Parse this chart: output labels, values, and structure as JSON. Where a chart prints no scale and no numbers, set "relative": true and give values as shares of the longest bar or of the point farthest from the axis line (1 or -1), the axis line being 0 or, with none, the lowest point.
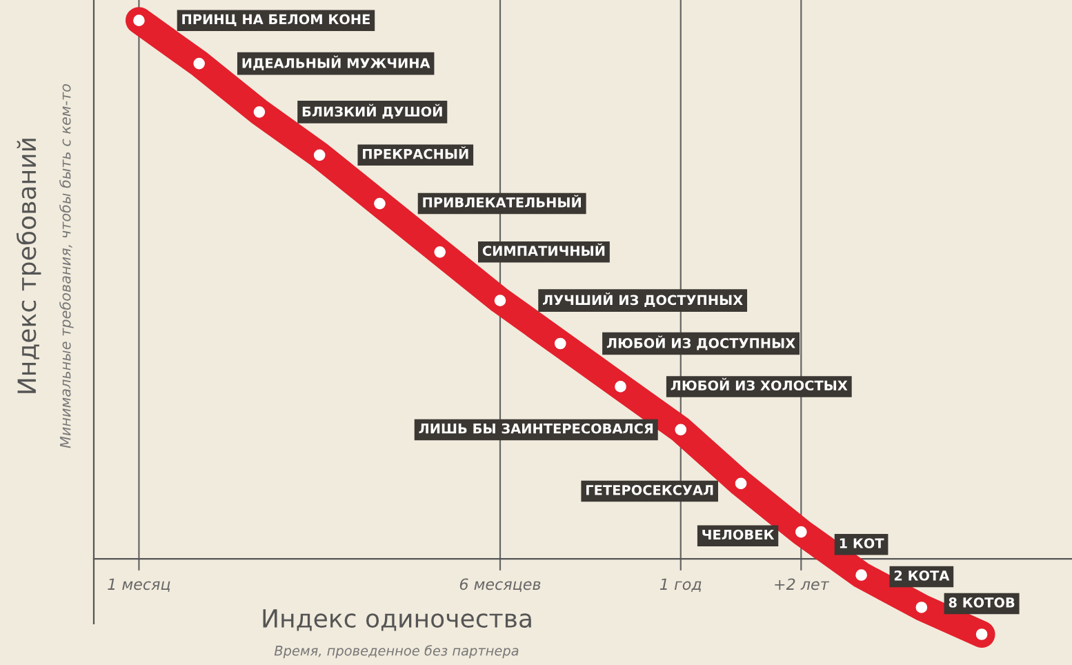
{
  "chart_data": {
    "type": "line",
    "relative": true,
    "marker": "circle",
    "line_style": "solid",
    "grid": "x",
    "xlabel": "Индекс одиночества",
    "ylabel": "Индекс требований",
    "annotations": [
      "Время, проведенное без партнера",
      "Минимальные требования, чтобы быть с кем-то",
      "ПРИНЦ НА БЕЛОМ КОНЕ",
      "ИДЕАЛЬНЫЙ МУЖЧИНА",
      "БЛИЗКИЙ ДУШОЙ",
      "ПРЕКРАСНЫЙ",
      "ПРИВЛЕКАТЕЛЬНЫЙ",
      "СИМПАТИЧНЫЙ",
      "ЛУЧШИЙ ИЗ ДОСТУПНЫХ",
      "ЛЮБОЙ ИЗ ДОСТУПНЫХ",
      "ЛЮБОЙ ИЗ ХОЛОСТЫХ",
      "ЛИШЬ БЫ ЗАИНТЕРЕСОВАЛСЯ",
      "ГЕТЕРОСЕКСУАЛ",
      "ЧЕЛОВЕК",
      "1 КОТ",
      "2 КОТА",
      "8 КОТОВ"
    ],
    "categories": [
      "1 месяц",
      null,
      null,
      null,
      null,
      null,
      "6 месяцев",
      null,
      null,
      "1 год",
      null,
      "+2 лет",
      null,
      null,
      null
    ],
    "series": [
      {
        "color": "#e3202c",
        "values": [
          1.0,
          0.92,
          0.83,
          0.75,
          0.66,
          0.57,
          0.48,
          0.4,
          0.32,
          0.24,
          0.14,
          0.05,
          -0.03,
          -0.09,
          -0.14
        ]
      }
    ]
  }
}
